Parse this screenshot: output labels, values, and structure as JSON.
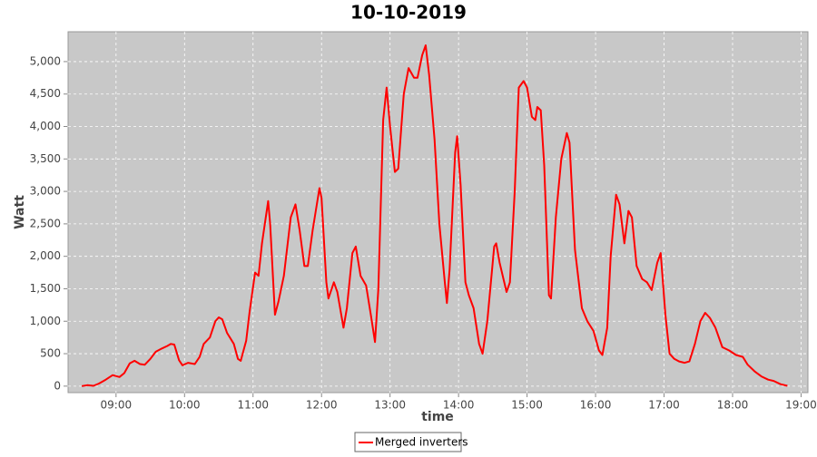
{
  "chart_data": {
    "type": "line",
    "title": "10-10-2019",
    "xlabel": "time",
    "ylabel": "Watt",
    "x": [
      8.5,
      8.58,
      8.67,
      8.75,
      8.85,
      8.95,
      9.05,
      9.12,
      9.2,
      9.27,
      9.35,
      9.42,
      9.5,
      9.58,
      9.67,
      9.75,
      9.8,
      9.85,
      9.92,
      9.97,
      10.05,
      10.15,
      10.22,
      10.28,
      10.37,
      10.45,
      10.5,
      10.55,
      10.62,
      10.72,
      10.78,
      10.82,
      10.9,
      10.95,
      11.03,
      11.08,
      11.13,
      11.22,
      11.25,
      11.32,
      11.37,
      11.45,
      11.55,
      11.62,
      11.68,
      11.75,
      11.8,
      11.87,
      11.97,
      12.0,
      12.07,
      12.1,
      12.18,
      12.23,
      12.32,
      12.37,
      12.45,
      12.5,
      12.57,
      12.65,
      12.72,
      12.78,
      12.83,
      12.9,
      12.95,
      13.0,
      13.07,
      13.12,
      13.2,
      13.27,
      13.35,
      13.4,
      13.47,
      13.52,
      13.57,
      13.65,
      13.72,
      13.8,
      13.83,
      13.87,
      13.95,
      13.98,
      14.03,
      14.1,
      14.15,
      14.22,
      14.3,
      14.35,
      14.42,
      14.52,
      14.55,
      14.6,
      14.7,
      14.75,
      14.82,
      14.88,
      14.95,
      15.0,
      15.07,
      15.12,
      15.15,
      15.2,
      15.25,
      15.32,
      15.35,
      15.42,
      15.5,
      15.58,
      15.62,
      15.7,
      15.8,
      15.88,
      15.97,
      16.05,
      16.1,
      16.17,
      16.22,
      16.3,
      16.35,
      16.42,
      16.48,
      16.53,
      16.6,
      16.68,
      16.75,
      16.82,
      16.9,
      16.95,
      17.02,
      17.08,
      17.15,
      17.22,
      17.3,
      17.37,
      17.45,
      17.53,
      17.6,
      17.67,
      17.75,
      17.85,
      17.95,
      18.05,
      18.15,
      18.22,
      18.32,
      18.42,
      18.52,
      18.6,
      18.7,
      18.8
    ],
    "series": [
      {
        "name": "Merged inverters",
        "color": "#ff0000",
        "values": [
          0,
          15,
          5,
          40,
          100,
          170,
          140,
          200,
          350,
          390,
          340,
          330,
          420,
          530,
          580,
          620,
          650,
          640,
          400,
          320,
          360,
          340,
          450,
          650,
          750,
          1000,
          1060,
          1030,
          820,
          650,
          420,
          390,
          700,
          1150,
          1750,
          1700,
          2200,
          2850,
          2500,
          1100,
          1300,
          1700,
          2600,
          2800,
          2400,
          1850,
          1850,
          2400,
          3050,
          2900,
          1600,
          1350,
          1600,
          1450,
          900,
          1200,
          2050,
          2150,
          1700,
          1550,
          1100,
          680,
          1500,
          4100,
          4600,
          4000,
          3300,
          3350,
          4500,
          4900,
          4750,
          4750,
          5100,
          5250,
          4800,
          3800,
          2500,
          1600,
          1280,
          1800,
          3600,
          3850,
          3100,
          1600,
          1400,
          1200,
          650,
          500,
          1000,
          2150,
          2200,
          1900,
          1450,
          1600,
          3000,
          4600,
          4700,
          4600,
          4150,
          4100,
          4300,
          4250,
          3400,
          1400,
          1350,
          2600,
          3500,
          3900,
          3750,
          2100,
          1200,
          1000,
          850,
          550,
          480,
          900,
          2000,
          2950,
          2800,
          2200,
          2700,
          2600,
          1850,
          1650,
          1600,
          1480,
          1900,
          2050,
          1100,
          500,
          420,
          380,
          360,
          380,
          650,
          1000,
          1130,
          1050,
          900,
          600,
          550,
          480,
          450,
          330,
          230,
          150,
          100,
          80,
          30,
          5
        ]
      }
    ],
    "xlim": [
      8.3,
      19.1
    ],
    "xticks": [
      {
        "value": 9,
        "label": "09:00"
      },
      {
        "value": 10,
        "label": "10:00"
      },
      {
        "value": 11,
        "label": "11:00"
      },
      {
        "value": 12,
        "label": "12:00"
      },
      {
        "value": 13,
        "label": "13:00"
      },
      {
        "value": 14,
        "label": "14:00"
      },
      {
        "value": 15,
        "label": "15:00"
      },
      {
        "value": 16,
        "label": "16:00"
      },
      {
        "value": 17,
        "label": "17:00"
      },
      {
        "value": 18,
        "label": "18:00"
      },
      {
        "value": 19,
        "label": "19:00"
      }
    ],
    "ylim": [
      -100,
      5460
    ],
    "yticks": [
      0,
      500,
      {
        "value": 1000,
        "label": "1,000"
      },
      {
        "value": 1500,
        "label": "1,500"
      },
      {
        "value": 2000,
        "label": "2,000"
      },
      {
        "value": 2500,
        "label": "2,500"
      },
      {
        "value": 3000,
        "label": "3,000"
      },
      {
        "value": 3500,
        "label": "3,500"
      },
      {
        "value": 4000,
        "label": "4,000"
      },
      {
        "value": 4500,
        "label": "4,500"
      },
      {
        "value": 5000,
        "label": "5,000"
      }
    ],
    "grid": true,
    "legend": "bottom"
  }
}
